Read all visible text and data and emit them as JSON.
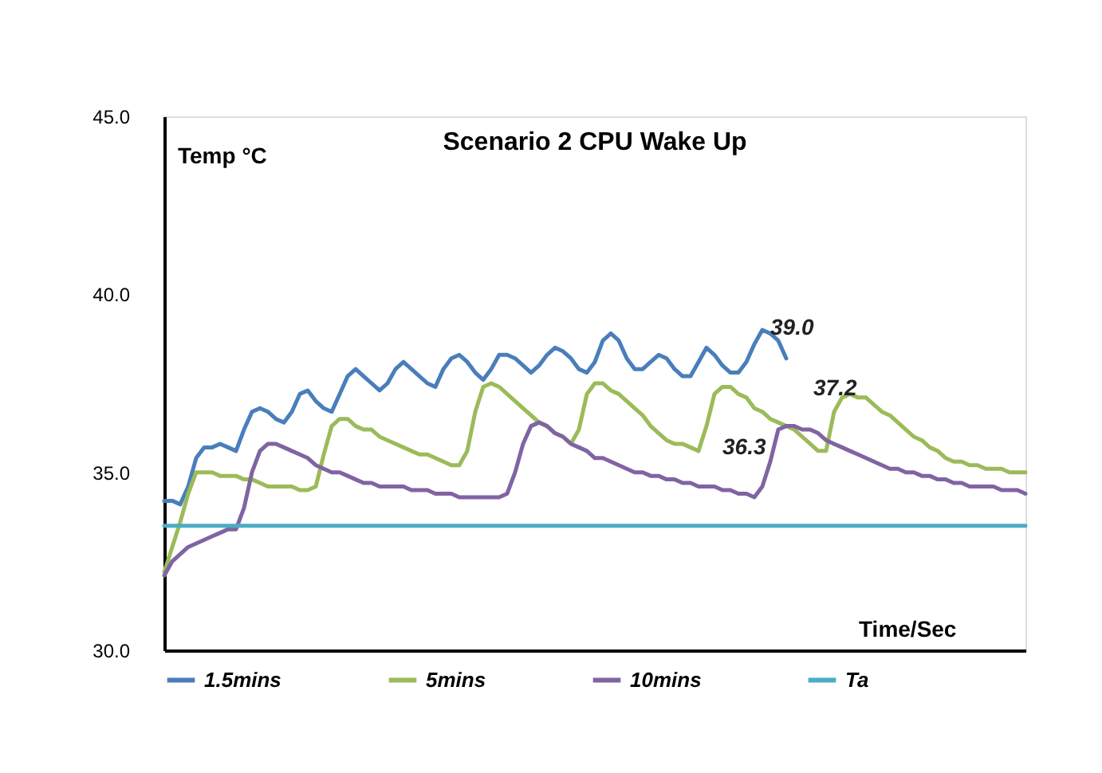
{
  "chart_data": {
    "type": "line",
    "title": "Scenario 2 CPU Wake Up",
    "xlabel": "Time/Sec",
    "ylabel": "Temp °C",
    "categories": [
      null,
      null,
      null,
      null,
      null,
      null,
      null,
      null,
      null,
      null,
      null,
      null,
      null,
      null,
      null,
      null,
      null,
      null,
      null,
      null,
      null,
      null,
      null,
      null,
      null,
      null,
      null,
      null,
      null,
      null,
      null,
      null,
      null,
      null,
      null,
      null,
      null,
      null,
      null,
      null,
      null,
      null,
      null,
      null,
      null,
      null,
      null,
      null,
      null,
      null,
      null,
      null,
      null,
      null,
      null,
      null,
      null,
      null,
      null,
      null,
      null,
      null,
      null,
      null,
      null,
      null,
      null,
      null,
      null,
      null,
      null,
      null,
      null,
      null,
      null,
      null,
      null,
      null,
      null,
      null,
      null,
      null,
      null,
      null,
      null,
      null,
      null,
      null,
      null,
      null,
      null,
      null,
      null,
      null,
      null,
      null,
      null,
      null,
      null,
      null,
      null,
      null,
      null,
      null,
      null,
      null,
      null,
      null,
      null
    ],
    "series": [
      {
        "name": "1.5mins",
        "color": "#4a7ebb",
        "values": [
          34.2,
          34.2,
          34.1,
          34.6,
          35.4,
          35.7,
          35.7,
          35.8,
          35.7,
          35.6,
          36.2,
          36.7,
          36.8,
          36.7,
          36.5,
          36.4,
          36.7,
          37.2,
          37.3,
          37.0,
          36.8,
          36.7,
          37.2,
          37.7,
          37.9,
          37.7,
          37.5,
          37.3,
          37.5,
          37.9,
          38.1,
          37.9,
          37.7,
          37.5,
          37.4,
          37.9,
          38.2,
          38.3,
          38.1,
          37.8,
          37.6,
          37.9,
          38.3,
          38.3,
          38.2,
          38.0,
          37.8,
          38.0,
          38.3,
          38.5,
          38.4,
          38.2,
          37.9,
          37.8,
          38.1,
          38.7,
          38.9,
          38.7,
          38.2,
          37.9,
          37.9,
          38.1,
          38.3,
          38.2,
          37.9,
          37.7,
          37.7,
          38.1,
          38.5,
          38.3,
          38.0,
          37.8,
          37.8,
          38.1,
          38.6,
          39.0,
          38.9,
          38.7,
          38.2,
          null,
          null,
          null,
          null,
          null,
          null,
          null,
          null,
          null,
          null,
          null,
          null,
          null,
          null,
          null,
          null,
          null,
          null,
          null,
          null,
          null,
          null,
          null,
          null,
          null,
          null,
          null,
          null,
          null,
          null
        ]
      },
      {
        "name": "5mins",
        "color": "#9bbb59",
        "values": [
          32.2,
          32.9,
          33.6,
          34.4,
          35.0,
          35.0,
          35.0,
          34.9,
          34.9,
          34.9,
          34.8,
          34.8,
          34.7,
          34.6,
          34.6,
          34.6,
          34.6,
          34.5,
          34.5,
          34.6,
          35.5,
          36.3,
          36.5,
          36.5,
          36.3,
          36.2,
          36.2,
          36.0,
          35.9,
          35.8,
          35.7,
          35.6,
          35.5,
          35.5,
          35.4,
          35.3,
          35.2,
          35.2,
          35.6,
          36.7,
          37.4,
          37.5,
          37.4,
          37.2,
          37.0,
          36.8,
          36.6,
          36.4,
          36.3,
          36.1,
          36.0,
          35.8,
          36.2,
          37.2,
          37.5,
          37.5,
          37.3,
          37.2,
          37.0,
          36.8,
          36.6,
          36.3,
          36.1,
          35.9,
          35.8,
          35.8,
          35.7,
          35.6,
          36.3,
          37.2,
          37.4,
          37.4,
          37.2,
          37.1,
          36.8,
          36.7,
          36.5,
          36.4,
          36.3,
          36.2,
          36.0,
          35.8,
          35.6,
          35.6,
          36.7,
          37.1,
          37.2,
          37.1,
          37.1,
          36.9,
          36.7,
          36.6,
          36.4,
          36.2,
          36.0,
          35.9,
          35.7,
          35.6,
          35.4,
          35.3,
          35.3,
          35.2,
          35.2,
          35.1,
          35.1,
          35.1,
          35.0,
          35.0,
          35.0
        ]
      },
      {
        "name": "10mins",
        "color": "#8064a2",
        "values": [
          32.1,
          32.5,
          32.7,
          32.9,
          33.0,
          33.1,
          33.2,
          33.3,
          33.4,
          33.4,
          34.0,
          35.0,
          35.6,
          35.8,
          35.8,
          35.7,
          35.6,
          35.5,
          35.4,
          35.2,
          35.1,
          35.0,
          35.0,
          34.9,
          34.8,
          34.7,
          34.7,
          34.6,
          34.6,
          34.6,
          34.6,
          34.5,
          34.5,
          34.5,
          34.4,
          34.4,
          34.4,
          34.3,
          34.3,
          34.3,
          34.3,
          34.3,
          34.3,
          34.4,
          35.0,
          35.8,
          36.3,
          36.4,
          36.3,
          36.1,
          36.0,
          35.8,
          35.7,
          35.6,
          35.4,
          35.4,
          35.3,
          35.2,
          35.1,
          35.0,
          35.0,
          34.9,
          34.9,
          34.8,
          34.8,
          34.7,
          34.7,
          34.6,
          34.6,
          34.6,
          34.5,
          34.5,
          34.4,
          34.4,
          34.3,
          34.6,
          35.3,
          36.2,
          36.3,
          36.3,
          36.2,
          36.2,
          36.1,
          35.9,
          35.8,
          35.7,
          35.6,
          35.5,
          35.4,
          35.3,
          35.2,
          35.1,
          35.1,
          35.0,
          35.0,
          34.9,
          34.9,
          34.8,
          34.8,
          34.7,
          34.7,
          34.6,
          34.6,
          34.6,
          34.6,
          34.5,
          34.5,
          34.5,
          34.4
        ]
      },
      {
        "name": "Ta",
        "color": "#4bacc6",
        "values": [
          33.5,
          33.5,
          33.5,
          33.5,
          33.5,
          33.5,
          33.5,
          33.5,
          33.5,
          33.5,
          33.5,
          33.5,
          33.5,
          33.5,
          33.5,
          33.5,
          33.5,
          33.5,
          33.5,
          33.5,
          33.5,
          33.5,
          33.5,
          33.5,
          33.5,
          33.5,
          33.5,
          33.5,
          33.5,
          33.5,
          33.5,
          33.5,
          33.5,
          33.5,
          33.5,
          33.5,
          33.5,
          33.5,
          33.5,
          33.5,
          33.5,
          33.5,
          33.5,
          33.5,
          33.5,
          33.5,
          33.5,
          33.5,
          33.5,
          33.5,
          33.5,
          33.5,
          33.5,
          33.5,
          33.5,
          33.5,
          33.5,
          33.5,
          33.5,
          33.5,
          33.5,
          33.5,
          33.5,
          33.5,
          33.5,
          33.5,
          33.5,
          33.5,
          33.5,
          33.5,
          33.5,
          33.5,
          33.5,
          33.5,
          33.5,
          33.5,
          33.5,
          33.5,
          33.5,
          33.5,
          33.5,
          33.5,
          33.5,
          33.5,
          33.5,
          33.5,
          33.5,
          33.5,
          33.5,
          33.5,
          33.5,
          33.5,
          33.5,
          33.5,
          33.5,
          33.5,
          33.5,
          33.5,
          33.5,
          33.5,
          33.5,
          33.5,
          33.5,
          33.5,
          33.5,
          33.5,
          33.5,
          33.5,
          33.5
        ]
      }
    ],
    "ylim": [
      30,
      45
    ],
    "yticks": [
      {
        "value": 30,
        "label": "30.0"
      },
      {
        "value": 35,
        "label": "35.0"
      },
      {
        "value": 40,
        "label": "40.0"
      },
      {
        "value": 45,
        "label": "45.0"
      }
    ],
    "annotations": [
      "39.0",
      "37.2",
      "36.3"
    ],
    "grid": false,
    "legend": "bottom",
    "marker": "none",
    "line_style": "solid"
  }
}
